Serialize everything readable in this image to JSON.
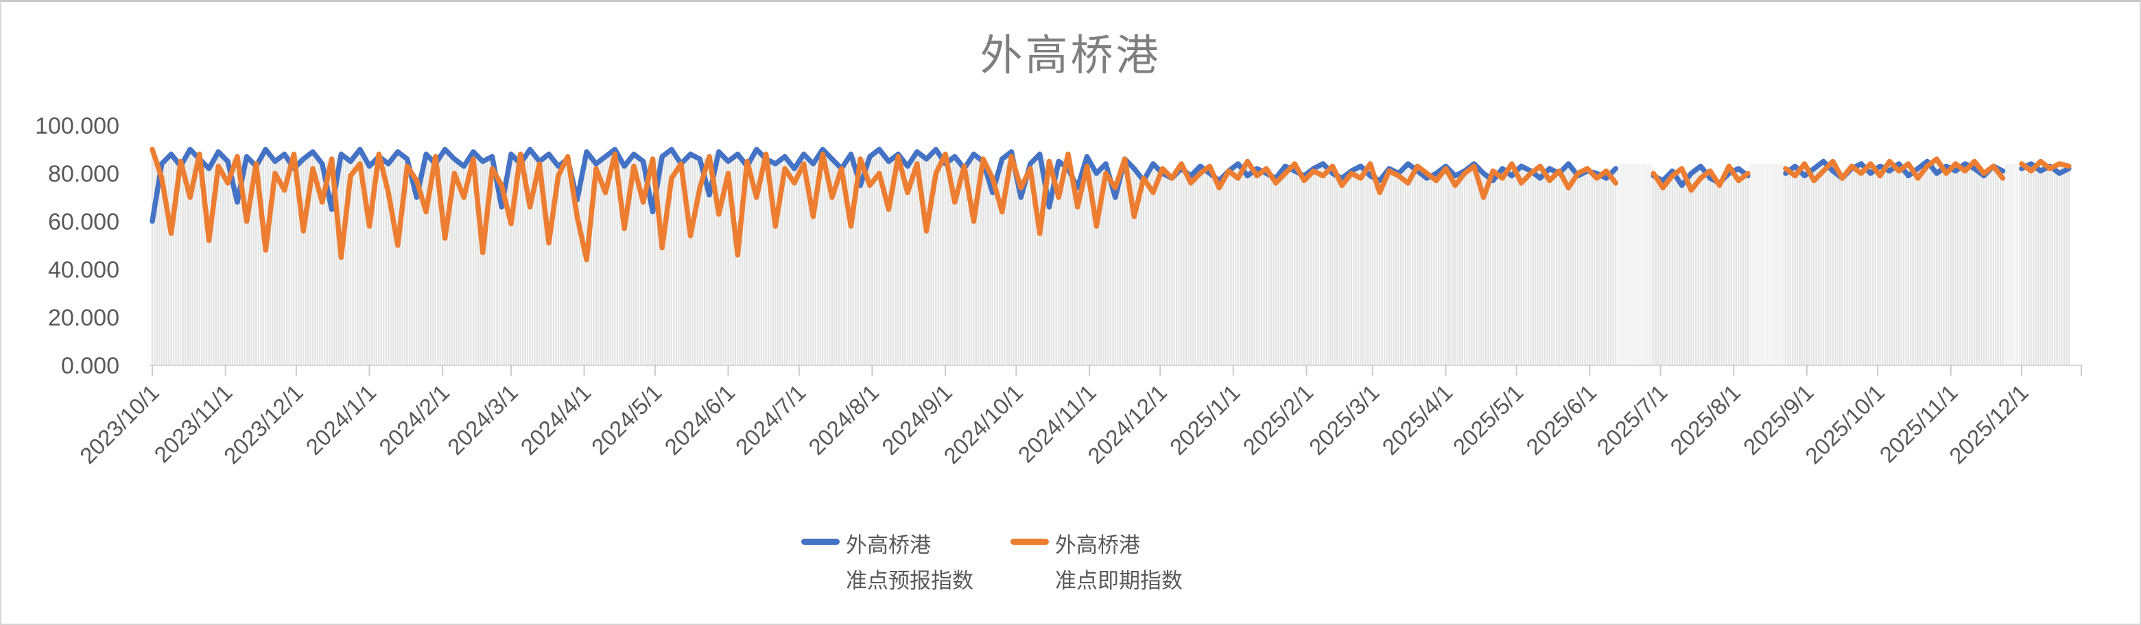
{
  "title": "外高桥港",
  "legend": [
    {
      "line1": "外高桥港",
      "line2": "准点预报指数",
      "color": "#4472C4"
    },
    {
      "line1": "外高桥港",
      "line2": "准点即期指数",
      "color": "#ED7D31"
    }
  ],
  "chart_data": {
    "type": "line",
    "title": "外高桥港",
    "xlabel": "",
    "ylabel": "",
    "ylim": [
      0,
      100
    ],
    "grid": false,
    "legend_position": "bottom",
    "start_date": "2023/10/1",
    "end_date": "2025/12/21",
    "step_days": 4,
    "axis_color": "#D9D9D9",
    "tick_color": "#C9C9C9",
    "dropline_color": "#E3E3E3",
    "missing_band_color": "#F1F1F1",
    "missing_band_top": 84,
    "y_ticks": [
      {
        "label": "100.000",
        "value": 100
      },
      {
        "label": "80.000",
        "value": 80
      },
      {
        "label": "60.000",
        "value": 60
      },
      {
        "label": "40.000",
        "value": 40
      },
      {
        "label": "20.000",
        "value": 20
      },
      {
        "label": "0.000",
        "value": 0
      }
    ],
    "x_ticks": [
      {
        "label": "2023/10/1",
        "day": 0
      },
      {
        "label": "2023/11/1",
        "day": 31
      },
      {
        "label": "2023/12/1",
        "day": 61
      },
      {
        "label": "2024/1/1",
        "day": 92
      },
      {
        "label": "2024/2/1",
        "day": 123
      },
      {
        "label": "2024/3/1",
        "day": 152
      },
      {
        "label": "2024/4/1",
        "day": 183
      },
      {
        "label": "2024/5/1",
        "day": 213
      },
      {
        "label": "2024/6/1",
        "day": 244
      },
      {
        "label": "2024/7/1",
        "day": 274
      },
      {
        "label": "2024/8/1",
        "day": 305
      },
      {
        "label": "2024/9/1",
        "day": 336
      },
      {
        "label": "2024/10/1",
        "day": 366
      },
      {
        "label": "2024/11/1",
        "day": 397
      },
      {
        "label": "2024/12/1",
        "day": 427
      },
      {
        "label": "2025/1/1",
        "day": 458
      },
      {
        "label": "2025/2/1",
        "day": 489
      },
      {
        "label": "2025/3/1",
        "day": 517
      },
      {
        "label": "2025/4/1",
        "day": 548
      },
      {
        "label": "2025/5/1",
        "day": 578
      },
      {
        "label": "2025/6/1",
        "day": 609
      },
      {
        "label": "2025/7/1",
        "day": 639
      },
      {
        "label": "2025/8/1",
        "day": 670
      },
      {
        "label": "2025/9/1",
        "day": 701
      },
      {
        "label": "2025/10/1",
        "day": 731
      },
      {
        "label": "2025/11/1",
        "day": 762
      },
      {
        "label": "2025/12/1",
        "day": 792
      }
    ],
    "series": [
      {
        "name": "外高桥港准点预报指数",
        "color": "#4472C4",
        "values": [
          60,
          84,
          88,
          83,
          90,
          86,
          82,
          89,
          85,
          68,
          87,
          83,
          90,
          85,
          88,
          82,
          86,
          89,
          84,
          65,
          88,
          85,
          90,
          83,
          87,
          84,
          89,
          86,
          70,
          88,
          84,
          90,
          86,
          83,
          89,
          85,
          87,
          66,
          88,
          84,
          90,
          85,
          88,
          83,
          86,
          69,
          89,
          84,
          87,
          90,
          83,
          88,
          85,
          64,
          87,
          90,
          84,
          88,
          86,
          71,
          89,
          85,
          88,
          83,
          90,
          86,
          84,
          87,
          82,
          88,
          84,
          90,
          86,
          82,
          88,
          75,
          87,
          90,
          85,
          88,
          83,
          89,
          86,
          90,
          84,
          87,
          82,
          88,
          85,
          72,
          86,
          89,
          70,
          84,
          88,
          66,
          85,
          82,
          74,
          87,
          80,
          84,
          70,
          86,
          82,
          77,
          84,
          80,
          78,
          82,
          79,
          83,
          80,
          77,
          81,
          84,
          79,
          82,
          80,
          78,
          83,
          81,
          79,
          82,
          84,
          80,
          78,
          81,
          83,
          79,
          77,
          82,
          80,
          84,
          81,
          78,
          80,
          83,
          79,
          81,
          84,
          80,
          77,
          82,
          79,
          83,
          81,
          78,
          82,
          80,
          84,
          79,
          81,
          80,
          78,
          82,
          null,
          null,
          null,
          79,
          77,
          81,
          75,
          80,
          83,
          78,
          76,
          80,
          82,
          79,
          null,
          null,
          null,
          80,
          83,
          79,
          82,
          85,
          81,
          78,
          82,
          84,
          80,
          83,
          81,
          84,
          79,
          82,
          85,
          80,
          83,
          81,
          84,
          82,
          79,
          83,
          81,
          null,
          82,
          84,
          81,
          83,
          80,
          82
        ]
      },
      {
        "name": "外高桥港准点即期指数",
        "color": "#ED7D31",
        "values": [
          90,
          78,
          55,
          85,
          70,
          88,
          52,
          83,
          76,
          87,
          60,
          84,
          48,
          80,
          73,
          88,
          56,
          82,
          68,
          86,
          45,
          79,
          84,
          58,
          88,
          72,
          50,
          83,
          77,
          64,
          87,
          53,
          80,
          70,
          86,
          47,
          82,
          75,
          59,
          88,
          66,
          84,
          51,
          79,
          87,
          62,
          44,
          82,
          72,
          88,
          57,
          83,
          68,
          86,
          49,
          78,
          84,
          54,
          74,
          87,
          63,
          80,
          46,
          85,
          70,
          88,
          58,
          82,
          76,
          84,
          62,
          88,
          70,
          82,
          58,
          86,
          75,
          80,
          65,
          87,
          72,
          84,
          56,
          80,
          88,
          68,
          83,
          60,
          86,
          78,
          64,
          87,
          74,
          82,
          55,
          85,
          70,
          88,
          66,
          83,
          58,
          80,
          74,
          86,
          62,
          78,
          72,
          82,
          78,
          84,
          76,
          80,
          83,
          74,
          81,
          78,
          85,
          79,
          82,
          76,
          80,
          84,
          77,
          81,
          79,
          83,
          75,
          80,
          78,
          84,
          72,
          81,
          79,
          76,
          83,
          80,
          77,
          82,
          75,
          80,
          83,
          70,
          81,
          78,
          84,
          76,
          80,
          83,
          77,
          81,
          74,
          80,
          82,
          78,
          81,
          76,
          null,
          null,
          null,
          80,
          74,
          79,
          82,
          73,
          78,
          81,
          75,
          83,
          77,
          80,
          null,
          null,
          null,
          82,
          79,
          84,
          77,
          81,
          85,
          78,
          83,
          80,
          84,
          79,
          85,
          81,
          84,
          78,
          83,
          86,
          80,
          84,
          81,
          85,
          80,
          83,
          78,
          null,
          84,
          81,
          85,
          82,
          84,
          83
        ]
      }
    ]
  }
}
